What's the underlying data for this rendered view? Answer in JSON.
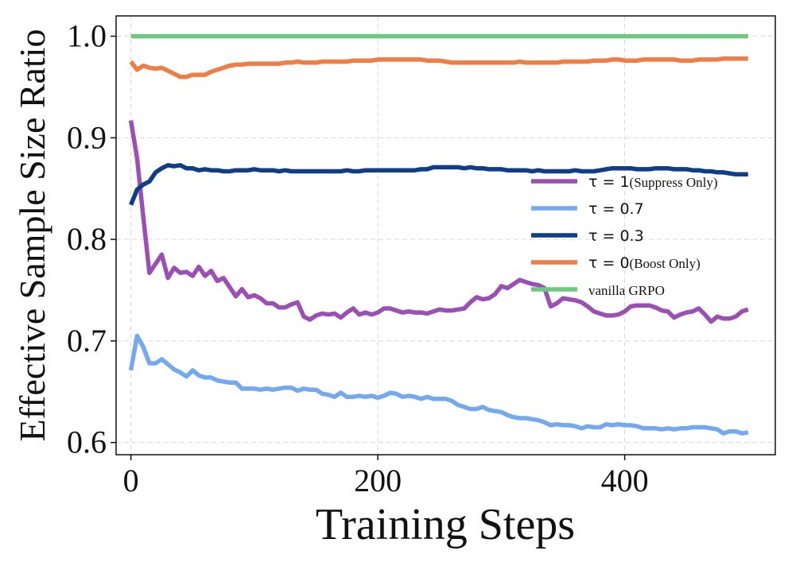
{
  "chart_data": {
    "type": "line",
    "title": "",
    "xlabel": "Training Steps",
    "ylabel": "Effective Sample Size Ratio",
    "xlim": [
      -12,
      522
    ],
    "ylim": [
      0.588,
      1.02
    ],
    "xticks": [
      0,
      200,
      400
    ],
    "xtick_labels": [
      "0",
      "200",
      "400"
    ],
    "yticks": [
      0.6,
      0.7,
      0.8,
      0.9,
      1.0
    ],
    "ytick_labels": [
      "0.6",
      "0.7",
      "0.8",
      "0.9",
      "1.0"
    ],
    "grid": true,
    "legend_position": "center-right",
    "x": [
      0,
      5,
      10,
      15,
      20,
      25,
      30,
      35,
      40,
      45,
      50,
      55,
      60,
      65,
      70,
      75,
      80,
      85,
      90,
      95,
      100,
      105,
      110,
      115,
      120,
      125,
      130,
      135,
      140,
      145,
      150,
      155,
      160,
      165,
      170,
      175,
      180,
      185,
      190,
      195,
      200,
      205,
      210,
      215,
      220,
      225,
      230,
      235,
      240,
      245,
      250,
      255,
      260,
      265,
      270,
      275,
      280,
      285,
      290,
      295,
      300,
      305,
      310,
      315,
      320,
      325,
      330,
      335,
      340,
      345,
      350,
      355,
      360,
      365,
      370,
      375,
      380,
      385,
      390,
      395,
      400,
      405,
      410,
      415,
      420,
      425,
      430,
      435,
      440,
      445,
      450,
      455,
      460,
      465,
      470,
      475,
      480,
      485,
      490,
      495,
      500
    ],
    "series": [
      {
        "name": "τ = 1(Suppress Only)",
        "name_math": "τ = 1",
        "name_note": "(Suppress Only)",
        "color": "#9b4fb5",
        "values": [
          0.917,
          0.88,
          0.822,
          0.767,
          0.776,
          0.785,
          0.762,
          0.772,
          0.767,
          0.768,
          0.764,
          0.773,
          0.764,
          0.769,
          0.759,
          0.762,
          0.753,
          0.744,
          0.751,
          0.743,
          0.745,
          0.742,
          0.737,
          0.737,
          0.733,
          0.733,
          0.736,
          0.738,
          0.724,
          0.721,
          0.725,
          0.727,
          0.726,
          0.727,
          0.723,
          0.728,
          0.732,
          0.726,
          0.728,
          0.726,
          0.728,
          0.732,
          0.732,
          0.73,
          0.728,
          0.729,
          0.728,
          0.728,
          0.727,
          0.729,
          0.731,
          0.73,
          0.73,
          0.731,
          0.732,
          0.738,
          0.743,
          0.741,
          0.742,
          0.746,
          0.754,
          0.752,
          0.756,
          0.76,
          0.758,
          0.756,
          0.755,
          0.752,
          0.734,
          0.737,
          0.742,
          0.741,
          0.74,
          0.738,
          0.734,
          0.729,
          0.727,
          0.725,
          0.725,
          0.726,
          0.729,
          0.734,
          0.735,
          0.735,
          0.735,
          0.733,
          0.73,
          0.729,
          0.723,
          0.726,
          0.728,
          0.729,
          0.732,
          0.726,
          0.719,
          0.724,
          0.722,
          0.722,
          0.724,
          0.729,
          0.731
        ]
      },
      {
        "name": "τ = 0.7",
        "name_math": "τ = 0.7",
        "name_note": "",
        "color": "#74a9f0",
        "values": [
          0.671,
          0.705,
          0.694,
          0.678,
          0.678,
          0.682,
          0.677,
          0.672,
          0.669,
          0.665,
          0.671,
          0.666,
          0.664,
          0.664,
          0.661,
          0.66,
          0.659,
          0.659,
          0.653,
          0.653,
          0.653,
          0.652,
          0.653,
          0.652,
          0.653,
          0.654,
          0.654,
          0.651,
          0.653,
          0.652,
          0.652,
          0.648,
          0.647,
          0.645,
          0.649,
          0.645,
          0.645,
          0.646,
          0.645,
          0.646,
          0.644,
          0.646,
          0.649,
          0.648,
          0.645,
          0.646,
          0.645,
          0.643,
          0.645,
          0.643,
          0.643,
          0.643,
          0.641,
          0.637,
          0.635,
          0.633,
          0.633,
          0.635,
          0.632,
          0.631,
          0.63,
          0.627,
          0.625,
          0.624,
          0.624,
          0.623,
          0.622,
          0.62,
          0.617,
          0.618,
          0.617,
          0.617,
          0.616,
          0.614,
          0.616,
          0.615,
          0.615,
          0.618,
          0.617,
          0.618,
          0.617,
          0.617,
          0.616,
          0.614,
          0.614,
          0.614,
          0.613,
          0.614,
          0.613,
          0.614,
          0.614,
          0.615,
          0.615,
          0.615,
          0.614,
          0.613,
          0.609,
          0.611,
          0.611,
          0.609,
          0.61
        ]
      },
      {
        "name": "τ = 0.3",
        "name_math": "τ = 0.3",
        "name_note": "",
        "color": "#0f3d87",
        "values": [
          0.834,
          0.849,
          0.854,
          0.857,
          0.866,
          0.87,
          0.873,
          0.872,
          0.873,
          0.87,
          0.87,
          0.868,
          0.869,
          0.868,
          0.868,
          0.867,
          0.867,
          0.868,
          0.868,
          0.868,
          0.869,
          0.868,
          0.868,
          0.868,
          0.867,
          0.868,
          0.867,
          0.867,
          0.867,
          0.867,
          0.867,
          0.867,
          0.867,
          0.867,
          0.867,
          0.868,
          0.867,
          0.867,
          0.868,
          0.868,
          0.868,
          0.868,
          0.868,
          0.868,
          0.868,
          0.868,
          0.868,
          0.869,
          0.869,
          0.871,
          0.871,
          0.871,
          0.871,
          0.871,
          0.87,
          0.871,
          0.87,
          0.87,
          0.869,
          0.869,
          0.869,
          0.868,
          0.868,
          0.868,
          0.868,
          0.867,
          0.868,
          0.867,
          0.867,
          0.867,
          0.867,
          0.867,
          0.868,
          0.867,
          0.867,
          0.867,
          0.868,
          0.869,
          0.87,
          0.87,
          0.87,
          0.87,
          0.869,
          0.869,
          0.869,
          0.87,
          0.87,
          0.87,
          0.869,
          0.869,
          0.869,
          0.868,
          0.868,
          0.867,
          0.867,
          0.866,
          0.866,
          0.865,
          0.864,
          0.864,
          0.864
        ]
      },
      {
        "name": "τ = 0(Boost Only)",
        "name_math": "τ = 0",
        "name_note": "(Boost Only)",
        "color": "#ef7d45",
        "values": [
          0.975,
          0.967,
          0.971,
          0.969,
          0.968,
          0.969,
          0.966,
          0.963,
          0.96,
          0.96,
          0.962,
          0.962,
          0.962,
          0.965,
          0.967,
          0.969,
          0.971,
          0.972,
          0.972,
          0.973,
          0.973,
          0.973,
          0.973,
          0.973,
          0.973,
          0.974,
          0.974,
          0.975,
          0.974,
          0.974,
          0.974,
          0.975,
          0.975,
          0.975,
          0.975,
          0.975,
          0.976,
          0.976,
          0.976,
          0.976,
          0.977,
          0.977,
          0.977,
          0.977,
          0.977,
          0.977,
          0.977,
          0.977,
          0.976,
          0.976,
          0.976,
          0.975,
          0.974,
          0.974,
          0.974,
          0.974,
          0.974,
          0.974,
          0.974,
          0.974,
          0.974,
          0.974,
          0.974,
          0.975,
          0.974,
          0.974,
          0.974,
          0.974,
          0.974,
          0.974,
          0.975,
          0.975,
          0.975,
          0.975,
          0.975,
          0.976,
          0.976,
          0.976,
          0.977,
          0.977,
          0.976,
          0.976,
          0.976,
          0.977,
          0.977,
          0.977,
          0.977,
          0.977,
          0.977,
          0.976,
          0.976,
          0.976,
          0.977,
          0.977,
          0.977,
          0.977,
          0.978,
          0.978,
          0.978,
          0.978,
          0.978
        ]
      },
      {
        "name": "vanilla GRPO",
        "name_math": "",
        "name_note": "vanilla GRPO",
        "color": "#6dc97f",
        "values": [
          1.0,
          1.0,
          1.0,
          1.0,
          1.0,
          1.0,
          1.0,
          1.0,
          1.0,
          1.0,
          1.0,
          1.0,
          1.0,
          1.0,
          1.0,
          1.0,
          1.0,
          1.0,
          1.0,
          1.0,
          1.0,
          1.0,
          1.0,
          1.0,
          1.0,
          1.0,
          1.0,
          1.0,
          1.0,
          1.0,
          1.0,
          1.0,
          1.0,
          1.0,
          1.0,
          1.0,
          1.0,
          1.0,
          1.0,
          1.0,
          1.0,
          1.0,
          1.0,
          1.0,
          1.0,
          1.0,
          1.0,
          1.0,
          1.0,
          1.0,
          1.0,
          1.0,
          1.0,
          1.0,
          1.0,
          1.0,
          1.0,
          1.0,
          1.0,
          1.0,
          1.0,
          1.0,
          1.0,
          1.0,
          1.0,
          1.0,
          1.0,
          1.0,
          1.0,
          1.0,
          1.0,
          1.0,
          1.0,
          1.0,
          1.0,
          1.0,
          1.0,
          1.0,
          1.0,
          1.0,
          1.0,
          1.0,
          1.0,
          1.0,
          1.0,
          1.0,
          1.0,
          1.0,
          1.0,
          1.0,
          1.0,
          1.0,
          1.0,
          1.0,
          1.0,
          1.0,
          1.0,
          1.0,
          1.0,
          1.0,
          1.0
        ]
      }
    ]
  }
}
